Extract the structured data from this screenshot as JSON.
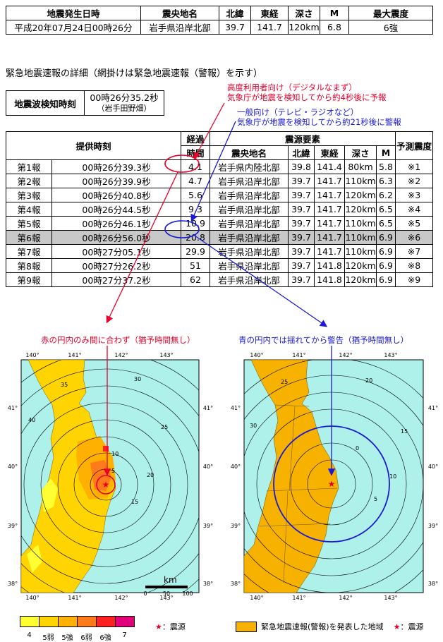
{
  "summary": {
    "headers": [
      "地震発生日時",
      "震央地名",
      "北緯",
      "東経",
      "深さ",
      "M",
      "最大震度"
    ],
    "row": [
      "平成20年07月24日00時26分",
      "岩手県沿岸北部",
      "39.7",
      "141.7",
      "120km",
      "6.8",
      "6強"
    ]
  },
  "section_title": "緊急地震速報の詳細（網掛けは緊急地震速報（警報）を示す）",
  "detection": {
    "label": "地震波検知時刻",
    "time": "00時26分35.2秒",
    "place": "（岩手田野畑）"
  },
  "annotations": {
    "red_line1": "高度利用者向け（デジタルなまず）",
    "red_line2": "気象庁が地震を検知してから約4秒後に予報",
    "blue_line1": "一般向け（テレビ・ラジオなど）",
    "blue_line2": "気象庁が地震を検知してから約21秒後に警報"
  },
  "reports": {
    "h_time": "提供時刻",
    "h_elapsed1": "経過",
    "h_elapsed2": "時間",
    "h_source": "震源要素",
    "h_place": "震央地名",
    "h_lat": "北緯",
    "h_lon": "東経",
    "h_depth": "深さ",
    "h_mag": "M",
    "h_int": "予測震度",
    "rows": [
      [
        "第1報",
        "00時26分39.3秒",
        "4.1",
        "岩手県内陸北部",
        "39.8",
        "141.4",
        "80km",
        "5.8",
        "※1"
      ],
      [
        "第2報",
        "00時26分39.9秒",
        "4.7",
        "岩手県沿岸北部",
        "39.7",
        "141.7",
        "110km",
        "6.3",
        "※2"
      ],
      [
        "第3報",
        "00時26分40.8秒",
        "5.6",
        "岩手県沿岸北部",
        "39.7",
        "141.7",
        "120km",
        "6.2",
        "※3"
      ],
      [
        "第4報",
        "00時26分44.5秒",
        "9.3",
        "岩手県沿岸北部",
        "39.7",
        "141.7",
        "120km",
        "6.5",
        "※4"
      ],
      [
        "第5報",
        "00時26分46.1秒",
        "10.9",
        "岩手県沿岸北部",
        "39.7",
        "141.7",
        "110km",
        "6.5",
        "※5"
      ],
      [
        "第6報",
        "00時26分56.0秒",
        "20.8",
        "岩手県沿岸北部",
        "39.7",
        "141.7",
        "110km",
        "6.9",
        "※6"
      ],
      [
        "第7報",
        "00時27分05.1秒",
        "29.9",
        "岩手県沿岸北部",
        "39.7",
        "141.7",
        "110km",
        "6.9",
        "※7"
      ],
      [
        "第8報",
        "00時27分26.2秒",
        "51",
        "岩手県沿岸北部",
        "39.7",
        "141.8",
        "120km",
        "6.9",
        "※8"
      ],
      [
        "第9報",
        "00時27分37.2秒",
        "62",
        "岩手県沿岸北部",
        "39.7",
        "141.8",
        "120km",
        "6.9",
        "※9"
      ]
    ]
  },
  "captions": {
    "left": "赤の円内のみ間に合わず（猶予時間無し）",
    "right": "青の円内では揺れてから警告（猶予時間無し）"
  },
  "map_left": {
    "lon_ticks": [
      "140°",
      "141°",
      "142°",
      "143°"
    ],
    "lat_ticks": [
      "41°",
      "40°",
      "39°",
      "38°"
    ],
    "contour_labels": [
      "5",
      "10",
      "15",
      "20",
      "25",
      "30",
      "35",
      "40"
    ],
    "scale_unit": "km",
    "scale_ticks": [
      "0",
      "50",
      "100"
    ]
  },
  "map_right": {
    "lon_ticks": [
      "140°",
      "141°",
      "142°",
      "143°"
    ],
    "lat_ticks": [
      "41°",
      "40°",
      "39°",
      "38°"
    ],
    "contour_labels": [
      "0",
      "5",
      "10",
      "15",
      "20",
      "25",
      "30"
    ]
  },
  "legend_left": {
    "labels": [
      "4",
      "5弱",
      "5強",
      "6弱",
      "6強",
      "7"
    ],
    "colors": [
      "#ffff33",
      "#ffd400",
      "#ffb000",
      "#ff7a1a",
      "#ff2020",
      "#e0007a"
    ],
    "epicenter": "：震源"
  },
  "legend_right": {
    "swatch_label": "緊急地震速報(警報)を発表した地域",
    "epicenter": "：震源",
    "swatch_color": "#f7b200"
  }
}
